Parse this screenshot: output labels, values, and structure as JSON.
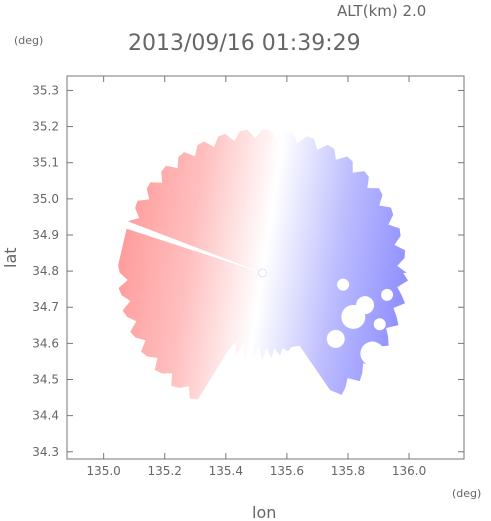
{
  "header": {
    "altitude_label": "ALT(km) 2.0",
    "timestamp": "2013/09/16 01:39:29"
  },
  "chart_data": {
    "type": "heatmap",
    "title": "2013/09/16 01:39:29",
    "subtitle": "ALT(km) 2.0",
    "xlabel": "lon",
    "ylabel": "lat",
    "x_unit": "(deg)",
    "y_unit": "(deg)",
    "xlim": [
      134.88,
      136.18
    ],
    "ylim": [
      34.28,
      35.34
    ],
    "x_ticks": [
      135.0,
      135.2,
      135.4,
      135.6,
      135.8,
      136.0
    ],
    "x_tick_labels": [
      "135.0",
      "135.2",
      "135.4",
      "135.6",
      "135.8",
      "136.0"
    ],
    "y_ticks": [
      34.3,
      34.4,
      34.5,
      34.6,
      34.7,
      34.8,
      34.9,
      35.0,
      35.1,
      35.2,
      35.3
    ],
    "y_tick_labels": [
      "34.3",
      "34.4",
      "34.5",
      "34.6",
      "34.7",
      "34.8",
      "34.9",
      "35.0",
      "35.1",
      "35.2",
      "35.3"
    ],
    "radar_center": {
      "lon": 135.52,
      "lat": 34.795
    },
    "max_range_deg": 0.48,
    "colormap": {
      "negative": "#8080ff",
      "zero": "#ffffff",
      "positive": "#ff8c8c"
    },
    "grid": false,
    "legend": "none"
  }
}
